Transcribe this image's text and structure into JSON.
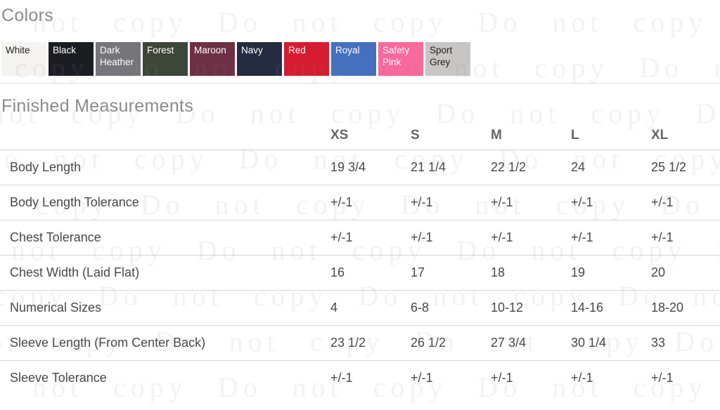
{
  "watermark": {
    "text": "Do not copy"
  },
  "colors_section": {
    "title": "Colors",
    "swatches": [
      {
        "name": "White",
        "bg": "#f4f3f1",
        "text_color": "#1f1f1f",
        "heather": false
      },
      {
        "name": "Black",
        "bg": "#1c1d22",
        "text_color": "#ffffff",
        "heather": false
      },
      {
        "name": "Dark Heather",
        "bg": "#75757a",
        "text_color": "#ffffff",
        "heather": true
      },
      {
        "name": "Forest",
        "bg": "#3d4639",
        "text_color": "#ffffff",
        "heather": false
      },
      {
        "name": "Maroon",
        "bg": "#6e3044",
        "text_color": "#ffffff",
        "heather": false
      },
      {
        "name": "Navy",
        "bg": "#262c40",
        "text_color": "#ffffff",
        "heather": false
      },
      {
        "name": "Red",
        "bg": "#d51c30",
        "text_color": "#ffffff",
        "heather": false
      },
      {
        "name": "Royal",
        "bg": "#4470bd",
        "text_color": "#ffffff",
        "heather": false
      },
      {
        "name": "Safety Pink",
        "bg": "#f8699c",
        "text_color": "#ffffff",
        "heather": false
      },
      {
        "name": "Sport Grey",
        "bg": "#c7c6c4",
        "text_color": "#222222",
        "heather": true
      }
    ]
  },
  "measurements_section": {
    "title": "Finished Measurements",
    "columns": [
      "XS",
      "S",
      "M",
      "L",
      "XL"
    ],
    "rows": [
      {
        "label": "Body Length",
        "values": [
          "19 3/4",
          "21 1/4",
          "22 1/2",
          "24",
          "25 1/2"
        ]
      },
      {
        "label": "Body Length Tolerance",
        "values": [
          "+/-1",
          "+/-1",
          "+/-1",
          "+/-1",
          "+/-1"
        ]
      },
      {
        "label": "Chest Tolerance",
        "values": [
          "+/-1",
          "+/-1",
          "+/-1",
          "+/-1",
          "+/-1"
        ]
      },
      {
        "label": "Chest Width (Laid Flat)",
        "values": [
          "16",
          "17",
          "18",
          "19",
          "20"
        ]
      },
      {
        "label": "Numerical Sizes",
        "values": [
          "4",
          "6-8",
          "10-12",
          "14-16",
          "18-20"
        ]
      },
      {
        "label": "Sleeve Length (From Center Back)",
        "values": [
          "23 1/2",
          "26 1/2",
          "27 3/4",
          "30 1/4",
          "33"
        ]
      },
      {
        "label": "Sleeve Tolerance",
        "values": [
          "+/-1",
          "+/-1",
          "+/-1",
          "+/-1",
          "+/-1"
        ]
      }
    ]
  }
}
